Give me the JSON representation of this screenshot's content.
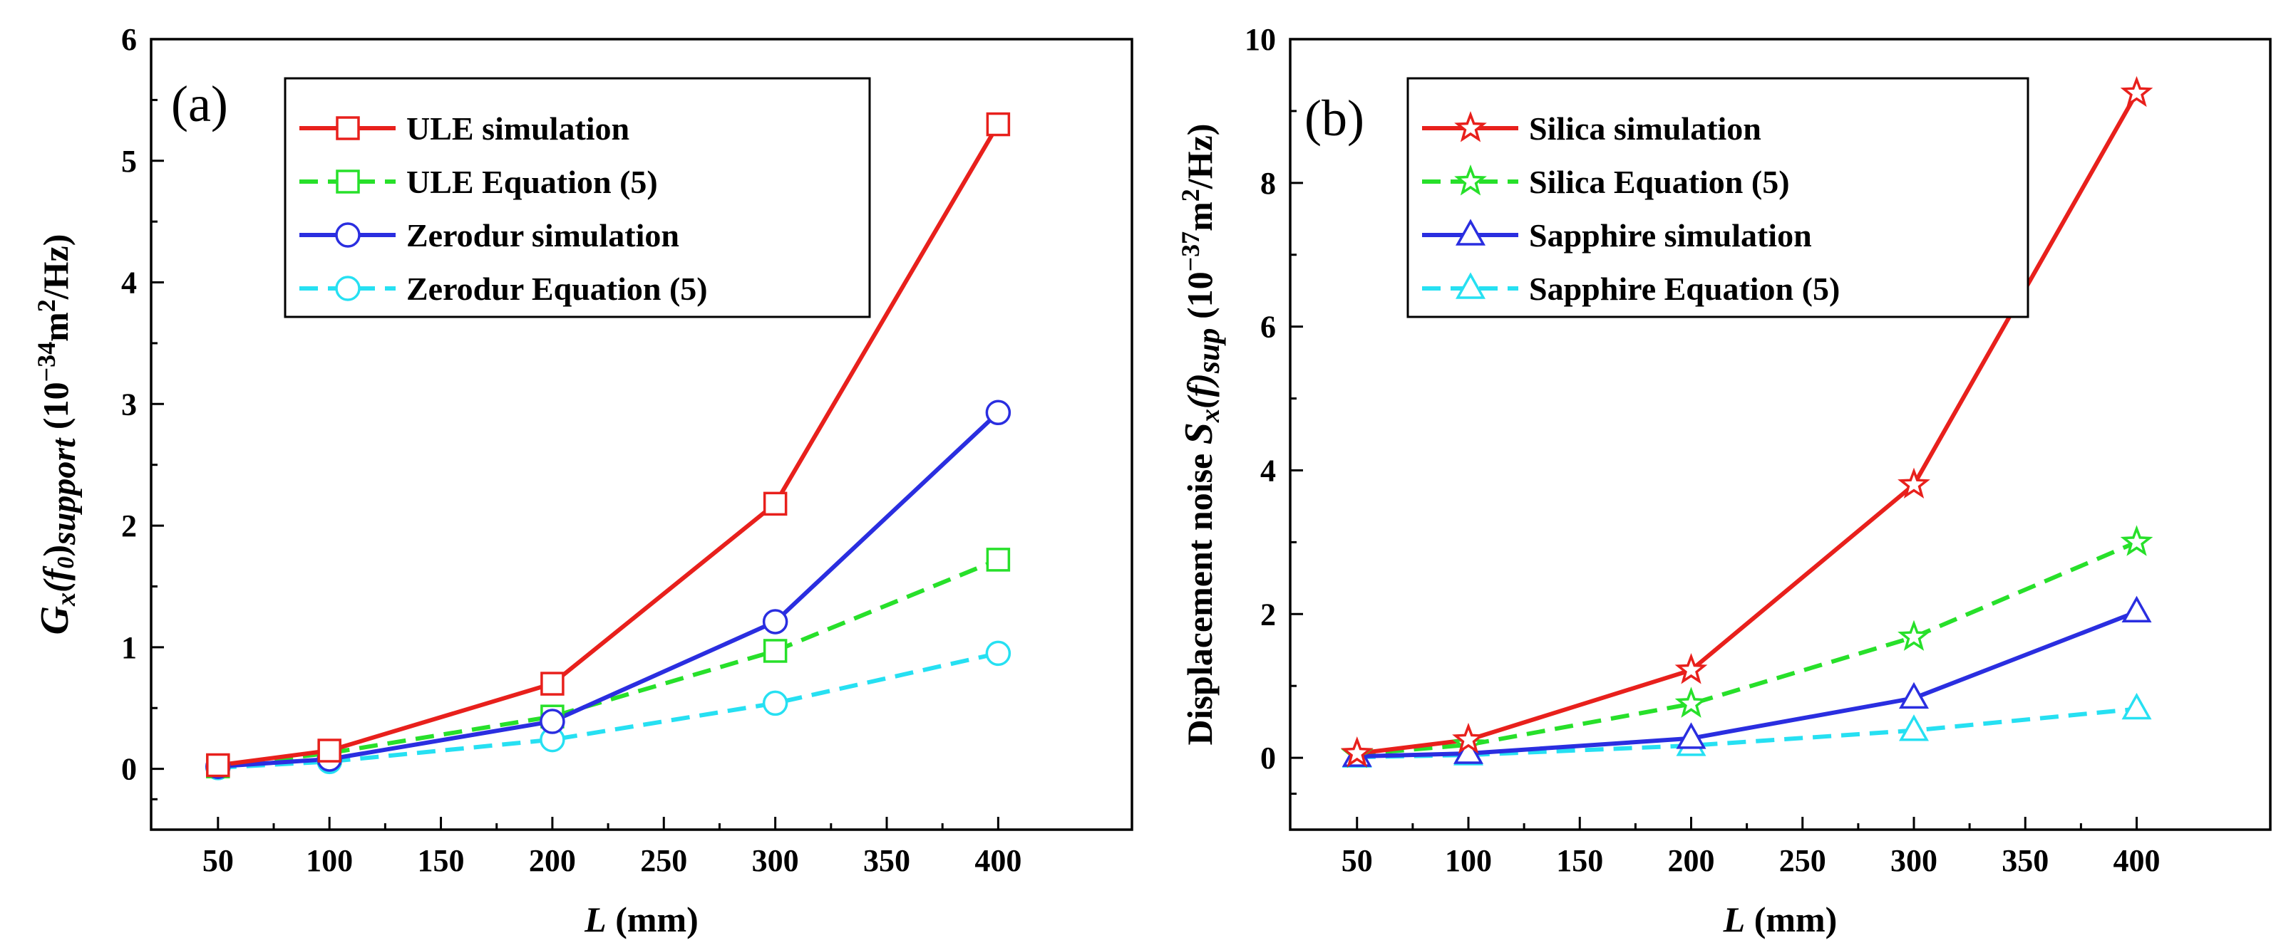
{
  "figure": {
    "description_labels": [
      "(a)",
      "(b)"
    ]
  },
  "chart_data": [
    {
      "type": "line",
      "panel_label": "(a)",
      "xlabel_italic": "L",
      "xlabel_rest": " (mm)",
      "ylabel_parts": {
        "g": "G",
        "x": "x",
        "f_open": "(f",
        "f_sub": "0",
        "f_close": ")",
        "support": "support",
        "units_open": " (10",
        "exp": "−34",
        "units_m": "m",
        "units_m_exp": "2",
        "units_close": "/Hz)"
      },
      "xlim": [
        20,
        460
      ],
      "ylim": [
        -0.5,
        6
      ],
      "xticks": [
        50,
        100,
        150,
        200,
        250,
        300,
        350,
        400
      ],
      "yticks": [
        0,
        1,
        2,
        3,
        4,
        5,
        6
      ],
      "x": [
        50,
        100,
        200,
        300,
        400
      ],
      "series": [
        {
          "name": "ULE simulation",
          "values": [
            0.03,
            0.15,
            0.7,
            2.18,
            5.3
          ],
          "color": "#e8201c",
          "dash": "solid",
          "marker": "square"
        },
        {
          "name": "ULE Equation (5)",
          "values": [
            0.02,
            0.13,
            0.43,
            0.97,
            1.72
          ],
          "color": "#27e02a",
          "dash": "dashed",
          "marker": "square"
        },
        {
          "name": "Zerodur simulation",
          "values": [
            0.02,
            0.08,
            0.39,
            1.21,
            2.93
          ],
          "color": "#2a2ee0",
          "dash": "solid",
          "marker": "circle"
        },
        {
          "name": "Zerodur Equation (5)",
          "values": [
            0.01,
            0.06,
            0.24,
            0.54,
            0.95
          ],
          "color": "#26e0f2",
          "dash": "dashed",
          "marker": "circle"
        }
      ]
    },
    {
      "type": "line",
      "panel_label": "(b)",
      "xlabel_italic": "L",
      "xlabel_rest": " (mm)",
      "ylabel_parts": {
        "prefix": "Displacement noise ",
        "s": "S",
        "x": "x",
        "f": "(f)",
        "sup": "sup",
        "units_open": " (10",
        "exp": "−37",
        "units_m": "m",
        "units_m_exp": "2",
        "units_close": "/Hz)"
      },
      "xlim": [
        20,
        460
      ],
      "ylim": [
        -1,
        10
      ],
      "xticks": [
        50,
        100,
        150,
        200,
        250,
        300,
        350,
        400
      ],
      "yticks": [
        0,
        2,
        4,
        6,
        8,
        10
      ],
      "x": [
        50,
        100,
        200,
        300,
        400
      ],
      "series": [
        {
          "name": "Silica simulation",
          "values": [
            0.06,
            0.25,
            1.22,
            3.8,
            9.25
          ],
          "color": "#e8201c",
          "dash": "solid",
          "marker": "star"
        },
        {
          "name": "Silica Equation (5)",
          "values": [
            0.05,
            0.18,
            0.75,
            1.68,
            3.0
          ],
          "color": "#27e02a",
          "dash": "dashed",
          "marker": "star"
        },
        {
          "name": "Sapphire simulation",
          "values": [
            0.02,
            0.06,
            0.27,
            0.83,
            2.03
          ],
          "color": "#2a2ee0",
          "dash": "solid",
          "marker": "triangle"
        },
        {
          "name": "Sapphire Equation (5)",
          "values": [
            0.01,
            0.04,
            0.17,
            0.38,
            0.68
          ],
          "color": "#26e0f2",
          "dash": "dashed",
          "marker": "triangle"
        }
      ]
    }
  ]
}
